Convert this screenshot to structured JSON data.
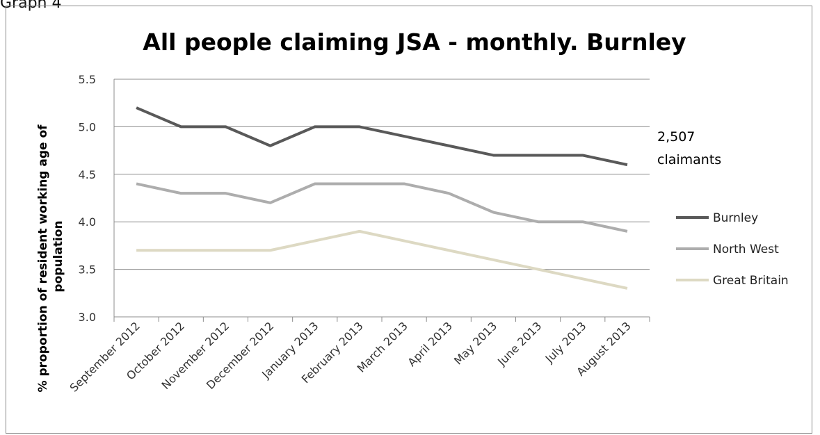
{
  "page_label": "Graph 4",
  "chart_data": {
    "type": "line",
    "title": "All people claiming JSA - monthly. Burnley",
    "xlabel": "",
    "ylabel": "% proportion of resident working age of population",
    "ylim": [
      3.0,
      5.5
    ],
    "yticks": [
      "3.0",
      "3.5",
      "4.0",
      "4.5",
      "5.0",
      "5.5"
    ],
    "grid": true,
    "legend_position": "right",
    "categories": [
      "September 2012",
      "October 2012",
      "November 2012",
      "December 2012",
      "January 2013",
      "February 2013",
      "March 2013",
      "April 2013",
      "May 2013",
      "June 2013",
      "July 2013",
      "August 2013"
    ],
    "series": [
      {
        "name": "Burnley",
        "color": "#595959",
        "values": [
          5.2,
          5.0,
          5.0,
          4.8,
          5.0,
          5.0,
          4.9,
          4.8,
          4.7,
          4.7,
          4.7,
          4.6
        ]
      },
      {
        "name": "North West",
        "color": "#adadad",
        "values": [
          4.4,
          4.3,
          4.3,
          4.2,
          4.4,
          4.4,
          4.4,
          4.3,
          4.1,
          4.0,
          4.0,
          3.9
        ]
      },
      {
        "name": "Great Britain",
        "color": "#ddd9c3",
        "values": [
          3.7,
          3.7,
          3.7,
          3.7,
          3.8,
          3.9,
          3.8,
          3.7,
          3.6,
          3.5,
          3.4,
          3.3
        ]
      }
    ],
    "annotation": {
      "line1": "2,507",
      "line2": "claimants"
    }
  }
}
